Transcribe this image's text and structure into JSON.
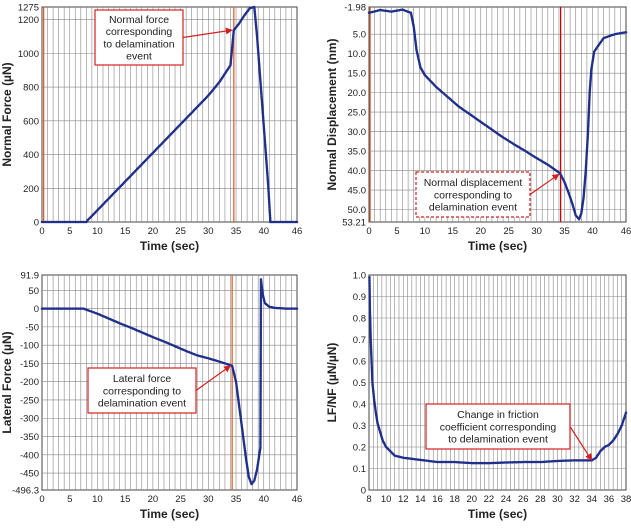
{
  "chart_data": [
    {
      "type": "scatter",
      "xlabel": "Time (sec)",
      "ylabel": "Normal Force (µN)",
      "xlim": [
        0,
        46
      ],
      "ylim": [
        0,
        1275
      ],
      "xticks": [
        "0",
        "5",
        "10",
        "15",
        "20",
        "25",
        "30",
        "35",
        "40",
        "46"
      ],
      "yticks": [
        "0",
        "200",
        "400",
        "600",
        "800",
        "1000",
        "1200",
        "1275"
      ],
      "grid": true,
      "annotation": {
        "lines": [
          "Normal force",
          "corresponding",
          "to delamination",
          "event"
        ],
        "target": [
          34.6,
          1138
        ]
      },
      "vlines": [
        {
          "x": 0.3,
          "color": "#e06030"
        },
        {
          "x": 34.6,
          "color": "#e06030"
        }
      ],
      "series": [
        {
          "color": "#1f2f8a",
          "points": [
            [
              0,
              0
            ],
            [
              8,
              0
            ],
            [
              8.2,
              10
            ],
            [
              10,
              70
            ],
            [
              12,
              138
            ],
            [
              14,
              206
            ],
            [
              16,
              274
            ],
            [
              18,
              342
            ],
            [
              20,
              410
            ],
            [
              22,
              478
            ],
            [
              24,
              546
            ],
            [
              26,
              614
            ],
            [
              28,
              682
            ],
            [
              30,
              750
            ],
            [
              32,
              830
            ],
            [
              34,
              930
            ],
            [
              34.6,
              1138
            ],
            [
              35.5,
              1175
            ],
            [
              36.5,
              1225
            ],
            [
              37.5,
              1268
            ],
            [
              38.3,
              1275
            ],
            [
              38.8,
              1100
            ],
            [
              39.3,
              880
            ],
            [
              39.8,
              660
            ],
            [
              40.3,
              440
            ],
            [
              40.8,
              220
            ],
            [
              41.2,
              0
            ],
            [
              46,
              0
            ]
          ]
        }
      ]
    },
    {
      "type": "scatter",
      "xlabel": "Time (sec)",
      "ylabel": "Normal Displacement (nm)",
      "xlim": [
        0,
        46
      ],
      "ylim": [
        -1.98,
        53.21
      ],
      "y_inverted": true,
      "xticks": [
        "0",
        "5",
        "10",
        "15",
        "20",
        "25",
        "30",
        "35",
        "40",
        "46"
      ],
      "yticks": [
        "-1.98",
        "5.0",
        "10.0",
        "15.0",
        "20.0",
        "25.0",
        "30.0",
        "35.0",
        "40.0",
        "45.0",
        "50.0",
        "53.21"
      ],
      "grid": true,
      "annotation": {
        "lines": [
          "Normal displacement",
          "corresponding to",
          "delamination event"
        ],
        "target": [
          34.3,
          41
        ]
      },
      "vlines": [
        {
          "x": 0.2,
          "color": "#e06030"
        },
        {
          "x": 34.3,
          "color": "#cc0000"
        }
      ],
      "series": [
        {
          "color": "#1f2f8a",
          "points": [
            [
              0,
              -0.5
            ],
            [
              2,
              -1.2
            ],
            [
              4,
              -0.8
            ],
            [
              6,
              -1.3
            ],
            [
              7.5,
              -0.5
            ],
            [
              8,
              3
            ],
            [
              8.5,
              9
            ],
            [
              9.2,
              13.5
            ],
            [
              10,
              15.5
            ],
            [
              11,
              17
            ],
            [
              12,
              18.5
            ],
            [
              14,
              21
            ],
            [
              16,
              23.5
            ],
            [
              18,
              25.5
            ],
            [
              20,
              27.5
            ],
            [
              22,
              29.5
            ],
            [
              24,
              31.5
            ],
            [
              26,
              33.3
            ],
            [
              28,
              35
            ],
            [
              30,
              36.8
            ],
            [
              32,
              38.5
            ],
            [
              34,
              40.5
            ],
            [
              34.3,
              41
            ],
            [
              35,
              43
            ],
            [
              35.8,
              46
            ],
            [
              36.5,
              49
            ],
            [
              37,
              51.5
            ],
            [
              37.6,
              52.5
            ],
            [
              38,
              51
            ],
            [
              38.4,
              47
            ],
            [
              38.8,
              40
            ],
            [
              39.2,
              30
            ],
            [
              39.5,
              20
            ],
            [
              39.8,
              14
            ],
            [
              40.3,
              9.5
            ],
            [
              41,
              8
            ],
            [
              42,
              6
            ],
            [
              44,
              5
            ],
            [
              46,
              4.5
            ]
          ]
        }
      ]
    },
    {
      "type": "scatter",
      "xlabel": "Time (sec)",
      "ylabel": "Lateral Force (µN)",
      "xlim": [
        0,
        46
      ],
      "ylim": [
        -496.3,
        91.9
      ],
      "xticks": [
        "0",
        "5",
        "10",
        "15",
        "20",
        "25",
        "30",
        "35",
        "40",
        "46"
      ],
      "yticks": [
        "91.9",
        "50",
        "0",
        "-50",
        "-100",
        "-150",
        "-200",
        "-250",
        "-300",
        "-350",
        "-400",
        "-450",
        "-496.3"
      ],
      "grid": true,
      "annotation": {
        "lines": [
          "Lateral force",
          "corresponding to",
          "delamination event"
        ],
        "target": [
          34.3,
          -157
        ]
      },
      "vlines": [
        {
          "x": 34.3,
          "color": "#e06030"
        }
      ],
      "series": [
        {
          "color": "#1f2f8a",
          "points": [
            [
              0,
              0
            ],
            [
              4,
              0
            ],
            [
              7.5,
              0
            ],
            [
              8,
              -3
            ],
            [
              10,
              -14
            ],
            [
              12,
              -27
            ],
            [
              14,
              -40
            ],
            [
              16,
              -52
            ],
            [
              18,
              -65
            ],
            [
              20,
              -78
            ],
            [
              22,
              -90
            ],
            [
              24,
              -103
            ],
            [
              26,
              -116
            ],
            [
              28,
              -128
            ],
            [
              30,
              -136
            ],
            [
              32,
              -145
            ],
            [
              34,
              -155
            ],
            [
              34.3,
              -157
            ],
            [
              35,
              -200
            ],
            [
              35.6,
              -270
            ],
            [
              36.2,
              -340
            ],
            [
              36.8,
              -410
            ],
            [
              37.3,
              -460
            ],
            [
              37.8,
              -480
            ],
            [
              38.3,
              -470
            ],
            [
              38.8,
              -440
            ],
            [
              39.2,
              -400
            ],
            [
              39.4,
              -380
            ],
            [
              39.5,
              80
            ],
            [
              39.8,
              40
            ],
            [
              40.2,
              15
            ],
            [
              41,
              5
            ],
            [
              42,
              2
            ],
            [
              44,
              0
            ],
            [
              46,
              0
            ]
          ]
        }
      ]
    },
    {
      "type": "scatter",
      "xlabel": "Time (sec)",
      "ylabel": "LF/NF (µN/µN)",
      "xlim": [
        8,
        38
      ],
      "ylim": [
        0,
        1.0
      ],
      "xticks": [
        "8",
        "10",
        "12",
        "14",
        "16",
        "18",
        "20",
        "22",
        "24",
        "26",
        "28",
        "30",
        "32",
        "34",
        "36",
        "38"
      ],
      "yticks": [
        "0",
        "0.1",
        "0.2",
        "0.3",
        "0.4",
        "0.5",
        "0.6",
        "0.7",
        "0.8",
        "0.9",
        "1.0"
      ],
      "grid": true,
      "annotation": {
        "lines": [
          "Change in friction",
          "coefficient corresponding",
          "to delamination event"
        ],
        "target": [
          34.2,
          0.14
        ]
      },
      "series": [
        {
          "color": "#1f2f8a",
          "points": [
            [
              8.05,
              0.99
            ],
            [
              8.1,
              0.85
            ],
            [
              8.2,
              0.7
            ],
            [
              8.3,
              0.6
            ],
            [
              8.4,
              0.5
            ],
            [
              8.6,
              0.42
            ],
            [
              8.8,
              0.36
            ],
            [
              9,
              0.31
            ],
            [
              9.3,
              0.27
            ],
            [
              9.6,
              0.23
            ],
            [
              10,
              0.2
            ],
            [
              10.5,
              0.18
            ],
            [
              11,
              0.16
            ],
            [
              12,
              0.15
            ],
            [
              14,
              0.14
            ],
            [
              16,
              0.13
            ],
            [
              18,
              0.13
            ],
            [
              20,
              0.125
            ],
            [
              22,
              0.125
            ],
            [
              24,
              0.128
            ],
            [
              26,
              0.13
            ],
            [
              28,
              0.13
            ],
            [
              30,
              0.135
            ],
            [
              32,
              0.138
            ],
            [
              34,
              0.138
            ],
            [
              34.5,
              0.15
            ],
            [
              35,
              0.18
            ],
            [
              35.5,
              0.2
            ],
            [
              36,
              0.21
            ],
            [
              36.5,
              0.23
            ],
            [
              37,
              0.26
            ],
            [
              37.5,
              0.3
            ],
            [
              38,
              0.36
            ]
          ]
        }
      ]
    }
  ]
}
